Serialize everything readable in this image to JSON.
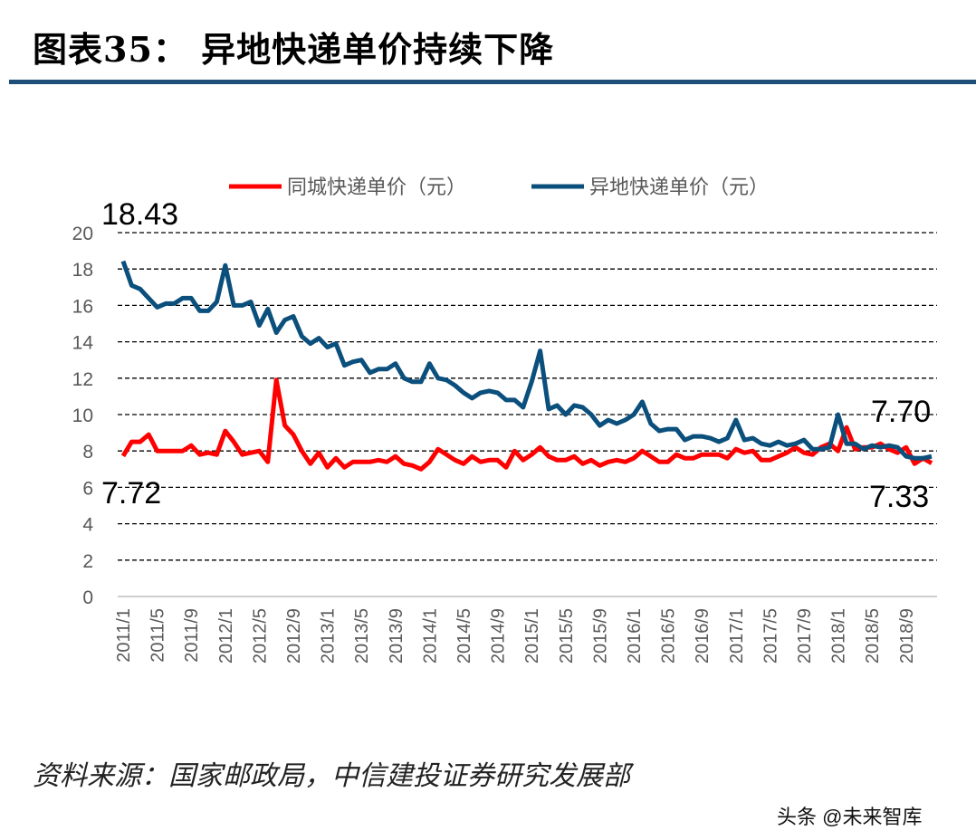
{
  "header": {
    "title": "图表35：  异地快递单价持续下降"
  },
  "footer": {
    "source": "资料来源：国家邮政局，中信建投证券研究发展部",
    "watermark": "头条 @未来智库"
  },
  "chart_data": {
    "type": "line",
    "title": "",
    "xlabel": "",
    "ylabel": "",
    "ylim": [
      0,
      20
    ],
    "yticks": [
      0,
      2,
      4,
      6,
      8,
      10,
      12,
      14,
      16,
      18,
      20
    ],
    "grid": true,
    "legend_position": "top",
    "x_start": "2011/1",
    "xtick_labels": [
      "2011/1",
      "2011/5",
      "2011/9",
      "2012/1",
      "2012/5",
      "2012/9",
      "2013/1",
      "2013/5",
      "2013/9",
      "2014/1",
      "2014/5",
      "2014/9",
      "2015/1",
      "2015/5",
      "2015/9",
      "2016/1",
      "2016/5",
      "2016/9",
      "2017/1",
      "2017/5",
      "2017/9",
      "2018/1",
      "2018/5",
      "2018/9"
    ],
    "series": [
      {
        "name": "同城快递单价（元）",
        "color": "#ff0000",
        "values": [
          7.72,
          8.5,
          8.5,
          8.9,
          8.0,
          8.0,
          8.0,
          8.0,
          8.3,
          7.8,
          7.9,
          7.8,
          9.1,
          8.5,
          7.8,
          7.9,
          8.0,
          7.4,
          11.9,
          9.4,
          8.9,
          8.0,
          7.3,
          7.9,
          7.1,
          7.6,
          7.1,
          7.4,
          7.4,
          7.4,
          7.5,
          7.4,
          7.7,
          7.3,
          7.2,
          7.0,
          7.4,
          8.1,
          7.8,
          7.5,
          7.3,
          7.7,
          7.4,
          7.5,
          7.5,
          7.1,
          8.0,
          7.5,
          7.8,
          8.2,
          7.7,
          7.5,
          7.5,
          7.7,
          7.3,
          7.5,
          7.2,
          7.4,
          7.5,
          7.4,
          7.6,
          8.0,
          7.7,
          7.4,
          7.4,
          7.8,
          7.6,
          7.6,
          7.8,
          7.8,
          7.8,
          7.6,
          8.1,
          7.9,
          8.0,
          7.5,
          7.5,
          7.7,
          7.9,
          8.2,
          7.9,
          7.8,
          8.2,
          8.4,
          8.0,
          9.3,
          8.1,
          8.2,
          8.2,
          8.4,
          8.1,
          7.9,
          8.2,
          7.3,
          7.6,
          7.33
        ]
      },
      {
        "name": "异地快递单价（元）",
        "color": "#0b4f7c",
        "values": [
          18.43,
          17.1,
          16.9,
          16.4,
          15.9,
          16.1,
          16.1,
          16.4,
          16.4,
          15.7,
          15.7,
          16.2,
          18.2,
          16.0,
          16.0,
          16.2,
          14.9,
          15.8,
          14.5,
          15.2,
          15.4,
          14.3,
          13.9,
          14.2,
          13.7,
          13.9,
          12.7,
          12.9,
          13.0,
          12.3,
          12.5,
          12.5,
          12.8,
          12.0,
          11.8,
          11.8,
          12.8,
          12.0,
          11.9,
          11.6,
          11.2,
          10.9,
          11.2,
          11.3,
          11.2,
          10.8,
          10.8,
          10.4,
          11.8,
          13.5,
          10.3,
          10.5,
          10.0,
          10.5,
          10.4,
          10.0,
          9.4,
          9.7,
          9.5,
          9.7,
          10.0,
          10.7,
          9.5,
          9.1,
          9.2,
          9.2,
          8.6,
          8.8,
          8.8,
          8.7,
          8.5,
          8.7,
          9.7,
          8.6,
          8.7,
          8.4,
          8.3,
          8.5,
          8.3,
          8.4,
          8.6,
          8.1,
          8.1,
          8.2,
          10.0,
          8.4,
          8.4,
          8.1,
          8.3,
          8.2,
          8.3,
          8.2,
          7.7,
          7.6,
          7.6,
          7.7
        ]
      }
    ],
    "annotations": [
      "18.43",
      "7.72",
      "7.70",
      "7.33"
    ]
  }
}
